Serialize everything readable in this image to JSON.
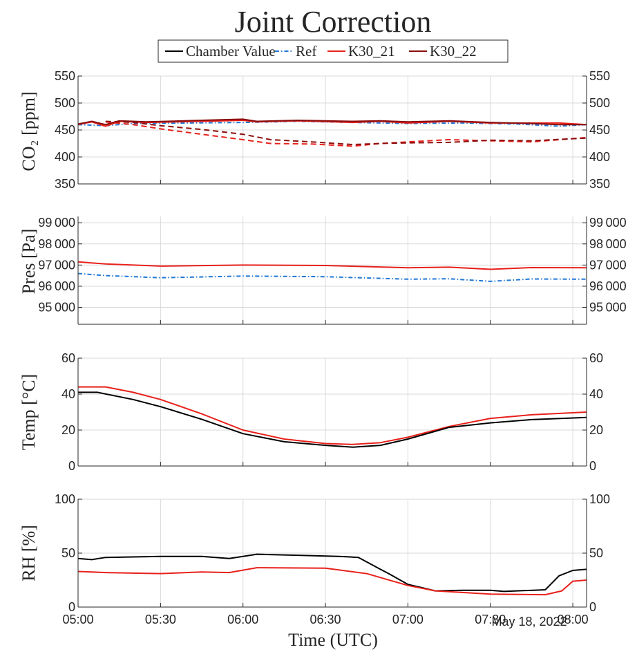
{
  "chart_data": {
    "title": "Joint Correction",
    "legend": {
      "placement": "top-center",
      "entries": [
        {
          "label": "Chamber Value",
          "color": "#000000",
          "dash": "solid"
        },
        {
          "label": "Ref",
          "color": "#1f77d4",
          "dash": "dashdot"
        },
        {
          "label": "K30_21",
          "color": "#e8201a",
          "dash": "solid"
        },
        {
          "label": "K30_22",
          "color": "#8b0d0d",
          "dash": "solid"
        }
      ]
    },
    "xlabel": "Time (UTC)",
    "date_label": "May 18, 2022",
    "x_range": [
      "05:00",
      "08:05"
    ],
    "x_ticks": [
      "05:00",
      "05:30",
      "06:00",
      "06:30",
      "07:00",
      "07:30",
      "08:00"
    ],
    "grid": true,
    "panels": [
      {
        "type": "line",
        "ylabel": "CO₂ [ppm]",
        "ylim": [
          350,
          550
        ],
        "y_ticks": [
          "550",
          "500",
          "450",
          "400",
          "350"
        ],
        "y_tick_values": [
          550,
          500,
          450,
          400,
          350
        ],
        "series": [
          {
            "name": "Ref",
            "color": "#1f77d4",
            "dash": "dashdot",
            "x": [
              "05:00",
              "05:10",
              "05:20",
              "05:40",
              "06:00",
              "06:20",
              "06:40",
              "07:00",
              "07:20",
              "07:40",
              "07:55",
              "08:05"
            ],
            "y": [
              460,
              458,
              462,
              463,
              464,
              466,
              464,
              462,
              463,
              461,
              457,
              460
            ]
          },
          {
            "name": "K30_21",
            "color": "#e8201a",
            "dash": "solid",
            "x": [
              "05:00",
              "05:05",
              "05:10",
              "05:15",
              "05:25",
              "05:45",
              "06:00",
              "06:05",
              "06:20",
              "06:40",
              "06:50",
              "07:00",
              "07:15",
              "07:30",
              "07:45",
              "07:55",
              "08:05"
            ],
            "y": [
              460,
              465,
              457,
              466,
              464,
              466,
              468,
              465,
              467,
              464,
              466,
              463,
              466,
              463,
              463,
              463,
              460
            ]
          },
          {
            "name": "K30_22",
            "color": "#8b0d0d",
            "dash": "solid",
            "x": [
              "05:00",
              "05:05",
              "05:10",
              "05:15",
              "05:25",
              "05:45",
              "06:00",
              "06:05",
              "06:20",
              "06:40",
              "06:50",
              "07:00",
              "07:15",
              "07:30",
              "07:45",
              "07:55",
              "08:05"
            ],
            "y": [
              461,
              466,
              460,
              467,
              465,
              468,
              470,
              466,
              468,
              466,
              467,
              465,
              467,
              464,
              462,
              460,
              460
            ]
          },
          {
            "name": "K30_21 (raw)",
            "color": "#e8201a",
            "dash": "dash",
            "x": [
              "05:10",
              "05:20",
              "05:30",
              "05:45",
              "06:00",
              "06:10",
              "06:25",
              "06:40",
              "06:50",
              "07:00",
              "07:15",
              "07:30",
              "07:45",
              "08:05"
            ],
            "y": [
              465,
              460,
              452,
              442,
              432,
              425,
              424,
              420,
              425,
              428,
              432,
              430,
              428,
              436
            ]
          },
          {
            "name": "K30_22 (raw)",
            "color": "#8b0d0d",
            "dash": "dash",
            "x": [
              "05:10",
              "05:20",
              "05:30",
              "05:45",
              "06:00",
              "06:10",
              "06:25",
              "06:40",
              "06:50",
              "07:00",
              "07:15",
              "07:30",
              "07:45",
              "08:05"
            ],
            "y": [
              466,
              464,
              458,
              451,
              442,
              432,
              428,
              423,
              425,
              426,
              427,
              431,
              430,
              435
            ]
          }
        ]
      },
      {
        "type": "line",
        "ylabel": "Pres [Pa]",
        "ylim": [
          94200,
          99300
        ],
        "y_ticks": [
          "99 000",
          "98 000",
          "97 000",
          "96 000",
          "95 000"
        ],
        "y_tick_values": [
          99000,
          98000,
          97000,
          96000,
          95000
        ],
        "series": [
          {
            "name": "K30_21",
            "color": "#e8201a",
            "dash": "solid",
            "x": [
              "05:00",
              "05:10",
              "05:30",
              "06:00",
              "06:30",
              "07:00",
              "07:15",
              "07:30",
              "07:45",
              "08:05"
            ],
            "y": [
              97150,
              97050,
              96950,
              97000,
              96980,
              96870,
              96900,
              96800,
              96880,
              96870
            ]
          },
          {
            "name": "Ref",
            "color": "#1f77d4",
            "dash": "dashdot",
            "x": [
              "05:00",
              "05:10",
              "05:30",
              "06:00",
              "06:30",
              "07:00",
              "07:15",
              "07:30",
              "07:45",
              "08:05"
            ],
            "y": [
              96600,
              96500,
              96400,
              96480,
              96450,
              96330,
              96350,
              96230,
              96340,
              96330
            ]
          }
        ]
      },
      {
        "type": "line",
        "ylabel": "Temp [°C]",
        "ylim": [
          0,
          60
        ],
        "y_ticks": [
          "60",
          "40",
          "20",
          "0"
        ],
        "y_tick_values": [
          60,
          40,
          20,
          0
        ],
        "series": [
          {
            "name": "K30_21",
            "color": "#e8201a",
            "dash": "solid",
            "x": [
              "05:00",
              "05:10",
              "05:20",
              "05:30",
              "05:45",
              "06:00",
              "06:15",
              "06:30",
              "06:40",
              "06:50",
              "07:00",
              "07:15",
              "07:30",
              "07:45",
              "08:05"
            ],
            "y": [
              44,
              44,
              41,
              37,
              29,
              20,
              15,
              12.5,
              12,
              13,
              16,
              22,
              26.5,
              28.5,
              30
            ]
          },
          {
            "name": "Chamber Value",
            "color": "#000000",
            "dash": "solid",
            "x": [
              "05:00",
              "05:07",
              "05:20",
              "05:30",
              "05:45",
              "06:00",
              "06:15",
              "06:30",
              "06:40",
              "06:50",
              "07:00",
              "07:15",
              "07:30",
              "07:45",
              "08:05"
            ],
            "y": [
              41,
              41,
              37,
              33,
              26,
              18,
              13.5,
              11.5,
              10.5,
              11.5,
              15,
              21.5,
              24,
              25.8,
              27
            ]
          }
        ]
      },
      {
        "type": "line",
        "ylabel": "RH [%]",
        "ylim": [
          0,
          100
        ],
        "y_ticks": [
          "100",
          "50",
          "0"
        ],
        "y_tick_values": [
          100,
          50,
          0
        ],
        "series": [
          {
            "name": "Chamber Value",
            "color": "#000000",
            "dash": "solid",
            "x": [
              "05:00",
              "05:05",
              "05:10",
              "05:30",
              "05:45",
              "05:55",
              "06:00",
              "06:05",
              "06:20",
              "06:35",
              "06:42",
              "06:50",
              "06:53",
              "07:00",
              "07:05",
              "07:10",
              "07:20",
              "07:30",
              "07:35",
              "07:50",
              "07:55",
              "08:00",
              "08:05"
            ],
            "y": [
              45,
              44,
              46,
              47,
              47,
              45,
              47,
              49,
              48,
              47,
              46,
              35,
              31,
              21,
              18,
              15,
              15.5,
              15.5,
              14.5,
              16,
              29,
              34,
              35
            ]
          },
          {
            "name": "K30_21",
            "color": "#e8201a",
            "dash": "solid",
            "x": [
              "05:00",
              "05:10",
              "05:30",
              "05:45",
              "05:55",
              "06:05",
              "06:30",
              "06:45",
              "07:00",
              "07:10",
              "07:30",
              "07:50",
              "07:56",
              "08:00",
              "08:05"
            ],
            "y": [
              33,
              32,
              31,
              32.5,
              32,
              36.5,
              36,
              31,
              20,
              15,
              12,
              11.5,
              15,
              24,
              25
            ]
          }
        ]
      }
    ]
  }
}
